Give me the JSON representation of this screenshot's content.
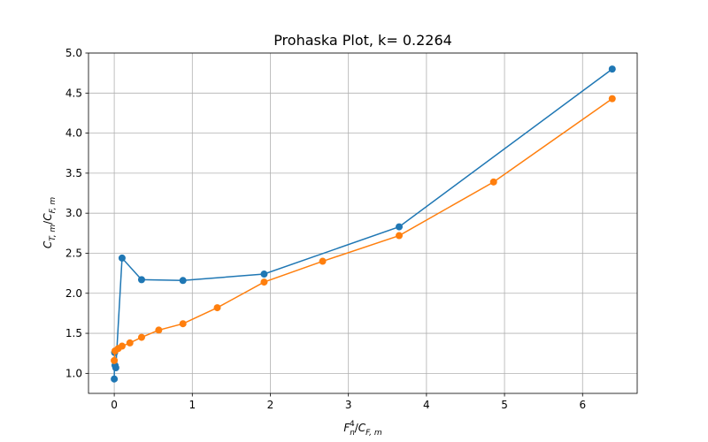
{
  "chart_data": {
    "type": "line",
    "title": "Prohaska Plot, k= 0.2264",
    "xlabel": "F_n^4/C_{F,m}",
    "ylabel": "C_{T,m}/C_{F,m}",
    "xlim": [
      -0.33,
      6.7
    ],
    "ylim": [
      0.75,
      5.0
    ],
    "xticks": [
      0,
      1,
      2,
      3,
      4,
      5,
      6
    ],
    "yticks": [
      1.0,
      1.5,
      2.0,
      2.5,
      3.0,
      3.5,
      4.0,
      4.5,
      5.0
    ],
    "grid": true,
    "series": [
      {
        "color": "#1f77b4",
        "x": [
          0.0,
          0.005,
          0.01,
          0.02,
          0.1,
          0.35,
          0.88,
          1.92,
          3.65,
          6.38
        ],
        "y": [
          0.93,
          1.26,
          1.1,
          1.07,
          2.44,
          2.17,
          2.16,
          2.24,
          2.83,
          4.8
        ]
      },
      {
        "color": "#ff7f0e",
        "x": [
          0.0,
          0.01,
          0.05,
          0.1,
          0.2,
          0.35,
          0.57,
          0.88,
          1.32,
          1.92,
          2.67,
          3.65,
          4.86,
          6.38
        ],
        "y": [
          1.16,
          1.28,
          1.31,
          1.34,
          1.38,
          1.45,
          1.54,
          1.62,
          1.82,
          2.14,
          2.4,
          2.72,
          3.39,
          4.43
        ]
      }
    ]
  }
}
